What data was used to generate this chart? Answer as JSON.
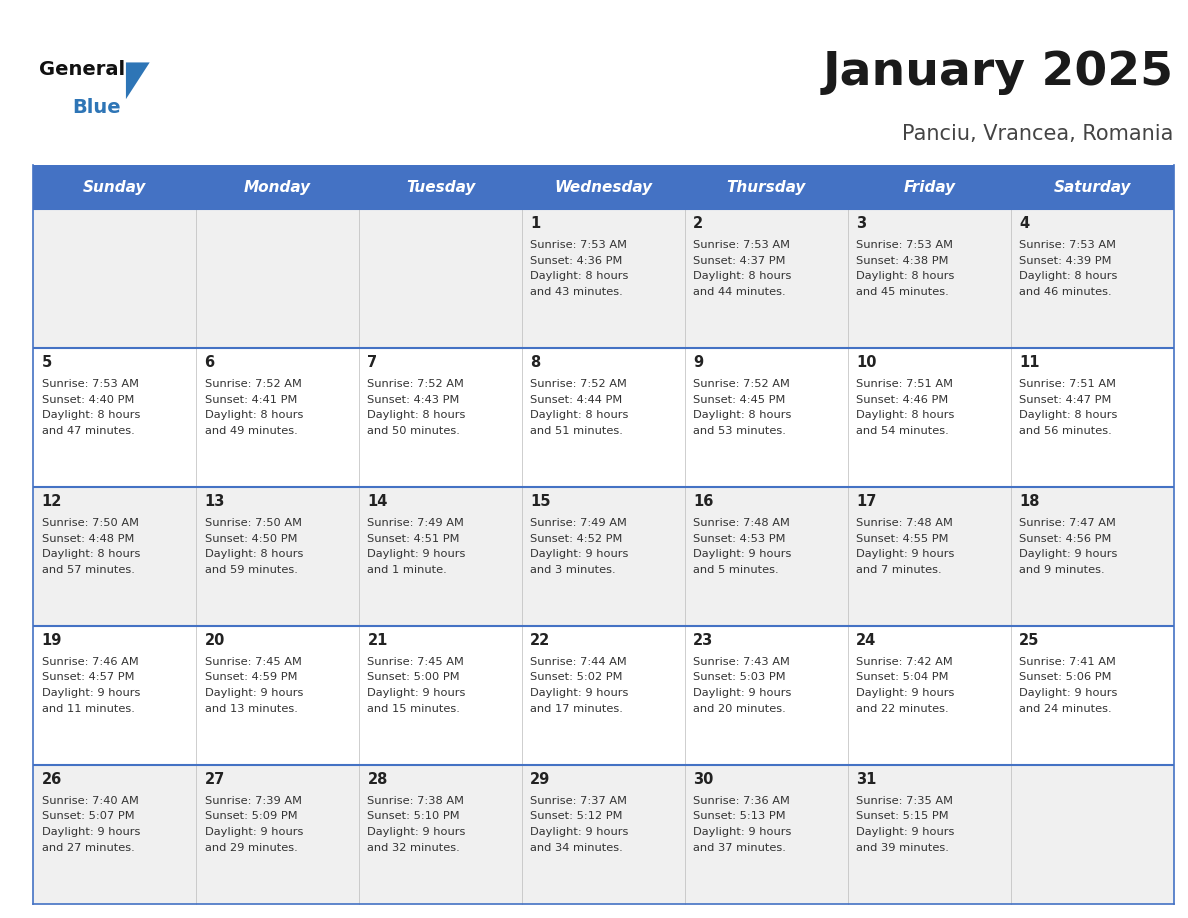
{
  "title": "January 2025",
  "subtitle": "Panciu, Vrancea, Romania",
  "days_of_week": [
    "Sunday",
    "Monday",
    "Tuesday",
    "Wednesday",
    "Thursday",
    "Friday",
    "Saturday"
  ],
  "header_bg": "#4472C4",
  "header_text_color": "#FFFFFF",
  "cell_bg_odd": "#F0F0F0",
  "cell_bg_even": "#FFFFFF",
  "separator_color": "#4472C4",
  "text_color": "#333333",
  "calendar_data": [
    {
      "day": null,
      "week": 0,
      "col": 0
    },
    {
      "day": null,
      "week": 0,
      "col": 1
    },
    {
      "day": null,
      "week": 0,
      "col": 2
    },
    {
      "day": 1,
      "week": 0,
      "col": 3,
      "sunrise": "7:53 AM",
      "sunset": "4:36 PM",
      "daylight_h": "8 hours",
      "daylight_m": "43 minutes."
    },
    {
      "day": 2,
      "week": 0,
      "col": 4,
      "sunrise": "7:53 AM",
      "sunset": "4:37 PM",
      "daylight_h": "8 hours",
      "daylight_m": "44 minutes."
    },
    {
      "day": 3,
      "week": 0,
      "col": 5,
      "sunrise": "7:53 AM",
      "sunset": "4:38 PM",
      "daylight_h": "8 hours",
      "daylight_m": "45 minutes."
    },
    {
      "day": 4,
      "week": 0,
      "col": 6,
      "sunrise": "7:53 AM",
      "sunset": "4:39 PM",
      "daylight_h": "8 hours",
      "daylight_m": "46 minutes."
    },
    {
      "day": 5,
      "week": 1,
      "col": 0,
      "sunrise": "7:53 AM",
      "sunset": "4:40 PM",
      "daylight_h": "8 hours",
      "daylight_m": "47 minutes."
    },
    {
      "day": 6,
      "week": 1,
      "col": 1,
      "sunrise": "7:52 AM",
      "sunset": "4:41 PM",
      "daylight_h": "8 hours",
      "daylight_m": "49 minutes."
    },
    {
      "day": 7,
      "week": 1,
      "col": 2,
      "sunrise": "7:52 AM",
      "sunset": "4:43 PM",
      "daylight_h": "8 hours",
      "daylight_m": "50 minutes."
    },
    {
      "day": 8,
      "week": 1,
      "col": 3,
      "sunrise": "7:52 AM",
      "sunset": "4:44 PM",
      "daylight_h": "8 hours",
      "daylight_m": "51 minutes."
    },
    {
      "day": 9,
      "week": 1,
      "col": 4,
      "sunrise": "7:52 AM",
      "sunset": "4:45 PM",
      "daylight_h": "8 hours",
      "daylight_m": "53 minutes."
    },
    {
      "day": 10,
      "week": 1,
      "col": 5,
      "sunrise": "7:51 AM",
      "sunset": "4:46 PM",
      "daylight_h": "8 hours",
      "daylight_m": "54 minutes."
    },
    {
      "day": 11,
      "week": 1,
      "col": 6,
      "sunrise": "7:51 AM",
      "sunset": "4:47 PM",
      "daylight_h": "8 hours",
      "daylight_m": "56 minutes."
    },
    {
      "day": 12,
      "week": 2,
      "col": 0,
      "sunrise": "7:50 AM",
      "sunset": "4:48 PM",
      "daylight_h": "8 hours",
      "daylight_m": "57 minutes."
    },
    {
      "day": 13,
      "week": 2,
      "col": 1,
      "sunrise": "7:50 AM",
      "sunset": "4:50 PM",
      "daylight_h": "8 hours",
      "daylight_m": "59 minutes."
    },
    {
      "day": 14,
      "week": 2,
      "col": 2,
      "sunrise": "7:49 AM",
      "sunset": "4:51 PM",
      "daylight_h": "9 hours",
      "daylight_m": "1 minute."
    },
    {
      "day": 15,
      "week": 2,
      "col": 3,
      "sunrise": "7:49 AM",
      "sunset": "4:52 PM",
      "daylight_h": "9 hours",
      "daylight_m": "3 minutes."
    },
    {
      "day": 16,
      "week": 2,
      "col": 4,
      "sunrise": "7:48 AM",
      "sunset": "4:53 PM",
      "daylight_h": "9 hours",
      "daylight_m": "5 minutes."
    },
    {
      "day": 17,
      "week": 2,
      "col": 5,
      "sunrise": "7:48 AM",
      "sunset": "4:55 PM",
      "daylight_h": "9 hours",
      "daylight_m": "7 minutes."
    },
    {
      "day": 18,
      "week": 2,
      "col": 6,
      "sunrise": "7:47 AM",
      "sunset": "4:56 PM",
      "daylight_h": "9 hours",
      "daylight_m": "9 minutes."
    },
    {
      "day": 19,
      "week": 3,
      "col": 0,
      "sunrise": "7:46 AM",
      "sunset": "4:57 PM",
      "daylight_h": "9 hours",
      "daylight_m": "11 minutes."
    },
    {
      "day": 20,
      "week": 3,
      "col": 1,
      "sunrise": "7:45 AM",
      "sunset": "4:59 PM",
      "daylight_h": "9 hours",
      "daylight_m": "13 minutes."
    },
    {
      "day": 21,
      "week": 3,
      "col": 2,
      "sunrise": "7:45 AM",
      "sunset": "5:00 PM",
      "daylight_h": "9 hours",
      "daylight_m": "15 minutes."
    },
    {
      "day": 22,
      "week": 3,
      "col": 3,
      "sunrise": "7:44 AM",
      "sunset": "5:02 PM",
      "daylight_h": "9 hours",
      "daylight_m": "17 minutes."
    },
    {
      "day": 23,
      "week": 3,
      "col": 4,
      "sunrise": "7:43 AM",
      "sunset": "5:03 PM",
      "daylight_h": "9 hours",
      "daylight_m": "20 minutes."
    },
    {
      "day": 24,
      "week": 3,
      "col": 5,
      "sunrise": "7:42 AM",
      "sunset": "5:04 PM",
      "daylight_h": "9 hours",
      "daylight_m": "22 minutes."
    },
    {
      "day": 25,
      "week": 3,
      "col": 6,
      "sunrise": "7:41 AM",
      "sunset": "5:06 PM",
      "daylight_h": "9 hours",
      "daylight_m": "24 minutes."
    },
    {
      "day": 26,
      "week": 4,
      "col": 0,
      "sunrise": "7:40 AM",
      "sunset": "5:07 PM",
      "daylight_h": "9 hours",
      "daylight_m": "27 minutes."
    },
    {
      "day": 27,
      "week": 4,
      "col": 1,
      "sunrise": "7:39 AM",
      "sunset": "5:09 PM",
      "daylight_h": "9 hours",
      "daylight_m": "29 minutes."
    },
    {
      "day": 28,
      "week": 4,
      "col": 2,
      "sunrise": "7:38 AM",
      "sunset": "5:10 PM",
      "daylight_h": "9 hours",
      "daylight_m": "32 minutes."
    },
    {
      "day": 29,
      "week": 4,
      "col": 3,
      "sunrise": "7:37 AM",
      "sunset": "5:12 PM",
      "daylight_h": "9 hours",
      "daylight_m": "34 minutes."
    },
    {
      "day": 30,
      "week": 4,
      "col": 4,
      "sunrise": "7:36 AM",
      "sunset": "5:13 PM",
      "daylight_h": "9 hours",
      "daylight_m": "37 minutes."
    },
    {
      "day": 31,
      "week": 4,
      "col": 5,
      "sunrise": "7:35 AM",
      "sunset": "5:15 PM",
      "daylight_h": "9 hours",
      "daylight_m": "39 minutes."
    },
    {
      "day": null,
      "week": 4,
      "col": 6
    }
  ],
  "num_weeks": 5
}
